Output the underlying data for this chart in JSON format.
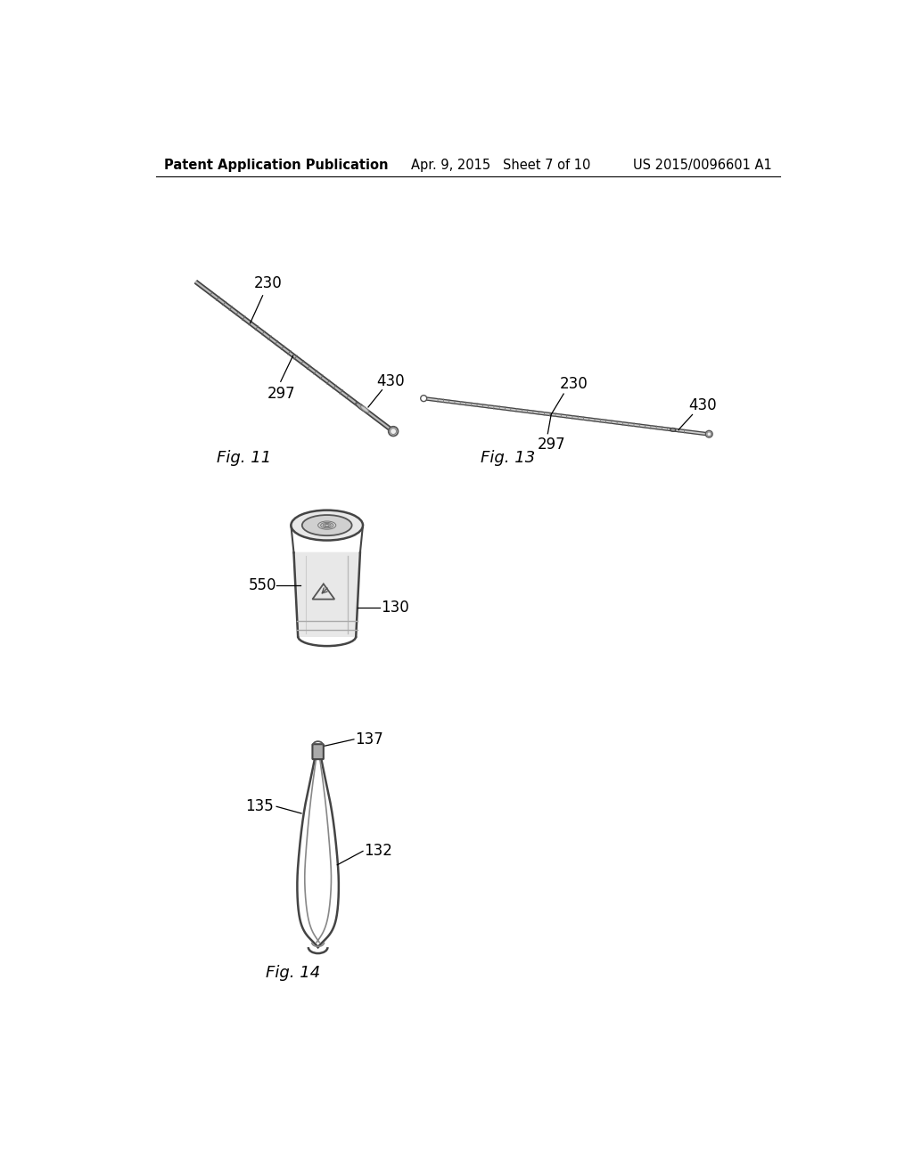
{
  "background_color": "#ffffff",
  "header_left": "Patent Application Publication",
  "header_center": "Apr. 9, 2015   Sheet 7 of 10",
  "header_right": "US 2015/0096601 A1",
  "header_fontsize": 10.5,
  "fig11_label": "Fig. 11",
  "fig13_label": "Fig. 13",
  "fig14_label": "Fig. 14",
  "label_fontsize": 13,
  "ref_fontsize": 12
}
